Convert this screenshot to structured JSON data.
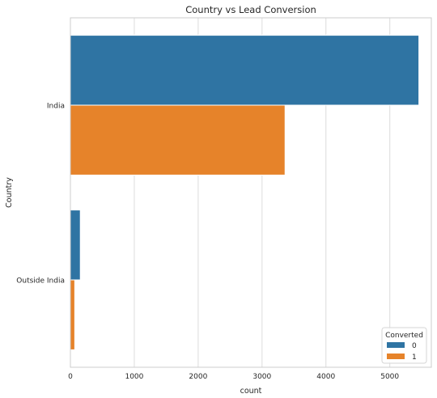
{
  "chart_data": {
    "type": "bar",
    "orientation": "horizontal",
    "title": "Country vs Lead Conversion",
    "xlabel": "count",
    "ylabel": "Country",
    "categories": [
      "India",
      "Outside India"
    ],
    "series": [
      {
        "name": "0",
        "color": "#2f74a3",
        "values": [
          5455,
          155
        ]
      },
      {
        "name": "1",
        "color": "#e6832a",
        "values": [
          3360,
          68
        ]
      }
    ],
    "xlim": [
      0,
      5650
    ],
    "xticks": [
      0,
      1000,
      2000,
      3000,
      4000,
      5000
    ],
    "grid": true,
    "legend": {
      "title": "Converted",
      "placement": "lower right"
    }
  }
}
